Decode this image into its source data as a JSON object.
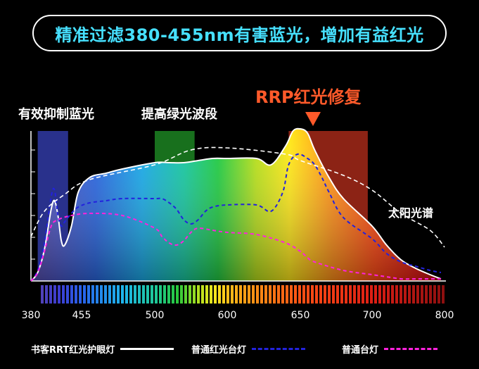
{
  "banner": {
    "text": "精准过滤380-455nm有害蓝光，增加有益红光"
  },
  "annotations": {
    "blue": "有效抑制蓝光",
    "green": "提高绿光波段",
    "rrp": "RRP红光修复",
    "sun": "太阳光谱"
  },
  "colors": {
    "rrt": "#ffffff",
    "red_lamp": "#2222dd",
    "normal_lamp": "#ff22dd",
    "sun": "#ffffff",
    "banner_text": "#46e0ff",
    "rrp_accent": "#ff5a2a"
  },
  "chart_data": {
    "type": "line",
    "x_unit": "nm",
    "xlim": [
      380,
      800
    ],
    "x_ticks": [
      380,
      455,
      500,
      600,
      650,
      700,
      800
    ],
    "highlight_bands": [
      {
        "name": "blue",
        "x_range": [
          390,
          435
        ],
        "color": "#3a46c8"
      },
      {
        "name": "green",
        "x_range": [
          500,
          555
        ],
        "color": "#22a02a"
      },
      {
        "name": "red",
        "x_range": [
          642,
          697
        ],
        "color": "#c8321e"
      }
    ],
    "series": [
      {
        "name": "书客RRT红光护眼灯",
        "style": "solid",
        "x": [
          380,
          390,
          400,
          410,
          415,
          420,
          425,
          430,
          440,
          450,
          460,
          470,
          480,
          500,
          520,
          540,
          560,
          580,
          600,
          620,
          630,
          640,
          645,
          650,
          655,
          660,
          670,
          680,
          700,
          720,
          740,
          760,
          780,
          795
        ],
        "y": [
          0,
          0.04,
          0.15,
          0.34,
          0.38,
          0.31,
          0.19,
          0.17,
          0.26,
          0.42,
          0.49,
          0.51,
          0.53,
          0.56,
          0.56,
          0.56,
          0.57,
          0.58,
          0.58,
          0.58,
          0.55,
          0.64,
          0.71,
          0.72,
          0.7,
          0.62,
          0.49,
          0.39,
          0.26,
          0.17,
          0.1,
          0.06,
          0.03,
          0.01
        ]
      },
      {
        "name": "普通红光台灯",
        "style": "dashed",
        "x": [
          380,
          390,
          400,
          410,
          415,
          420,
          425,
          430,
          440,
          450,
          460,
          470,
          480,
          500,
          510,
          520,
          530,
          540,
          550,
          560,
          570,
          580,
          600,
          620,
          630,
          638,
          642,
          648,
          655,
          660,
          665,
          670,
          680,
          700,
          720,
          740,
          760,
          780,
          795
        ],
        "y": [
          0,
          0.05,
          0.18,
          0.4,
          0.43,
          0.31,
          0.26,
          0.28,
          0.32,
          0.35,
          0.37,
          0.38,
          0.39,
          0.39,
          0.39,
          0.37,
          0.34,
          0.29,
          0.27,
          0.29,
          0.33,
          0.35,
          0.36,
          0.36,
          0.33,
          0.42,
          0.55,
          0.6,
          0.58,
          0.55,
          0.49,
          0.42,
          0.3,
          0.2,
          0.13,
          0.09,
          0.07,
          0.05,
          0.04
        ]
      },
      {
        "name": "普通台灯",
        "style": "dashed",
        "x": [
          380,
          390,
          400,
          410,
          420,
          440,
          460,
          480,
          500,
          510,
          520,
          530,
          540,
          550,
          560,
          580,
          600,
          620,
          640,
          650,
          655,
          660,
          680,
          700,
          720,
          740,
          760,
          780,
          795
        ],
        "y": [
          0,
          0.04,
          0.14,
          0.26,
          0.29,
          0.31,
          0.32,
          0.31,
          0.25,
          0.21,
          0.18,
          0.17,
          0.19,
          0.23,
          0.25,
          0.24,
          0.23,
          0.22,
          0.18,
          0.14,
          0.11,
          0.09,
          0.05,
          0.03,
          0.02,
          0.01,
          0.01,
          0.01,
          0.01
        ]
      },
      {
        "name": "太阳光谱",
        "style": "dashed",
        "x": [
          380,
          400,
          430,
          460,
          500,
          550,
          600,
          640,
          650,
          680,
          700,
          740,
          780,
          800
        ],
        "y": [
          0.21,
          0.33,
          0.41,
          0.48,
          0.55,
          0.62,
          0.63,
          0.6,
          0.57,
          0.5,
          0.43,
          0.32,
          0.24,
          0.16
        ]
      }
    ]
  },
  "legend": [
    {
      "label": "书客RRT红光护眼灯"
    },
    {
      "label": "普通红光台灯"
    },
    {
      "label": "普通台灯"
    }
  ]
}
